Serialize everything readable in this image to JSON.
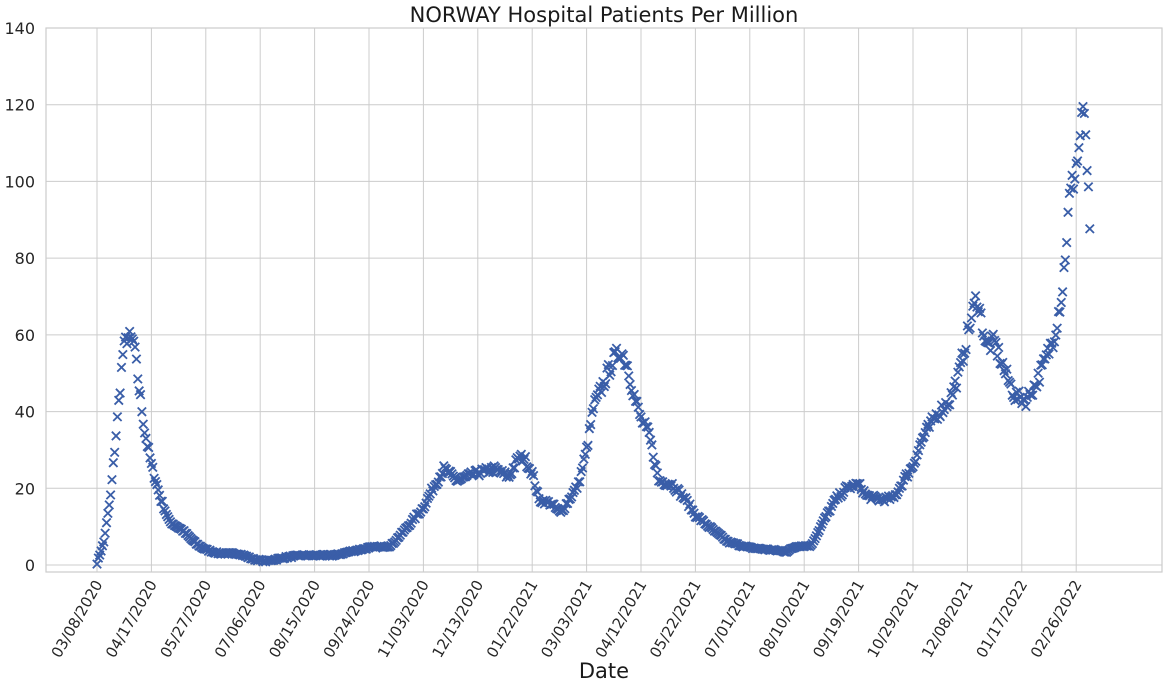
{
  "chart_data": {
    "type": "scatter",
    "title": "NORWAY   Hospital Patients Per Million",
    "xlabel": "Date",
    "ylabel": "",
    "ylim": [
      0,
      140
    ],
    "yticks": [
      0,
      20,
      40,
      60,
      80,
      100,
      120,
      140
    ],
    "x_start": "03/08/2020",
    "x_end": "03/08/2022",
    "xticks": [
      "03/08/2020",
      "04/17/2020",
      "05/27/2020",
      "07/06/2020",
      "08/15/2020",
      "09/24/2020",
      "11/03/2020",
      "12/13/2020",
      "01/22/2021",
      "03/03/2021",
      "04/12/2021",
      "05/22/2021",
      "07/01/2021",
      "08/10/2021",
      "09/19/2021",
      "10/29/2021",
      "12/08/2021",
      "01/17/2022",
      "02/26/2022"
    ],
    "marker": "x",
    "grid": true,
    "color": "#3a5ea8",
    "series": [
      {
        "keyframes": [
          [
            "03/08/2020",
            0.5
          ],
          [
            "03/13/2020",
            6
          ],
          [
            "03/18/2020",
            18
          ],
          [
            "03/23/2020",
            38
          ],
          [
            "03/27/2020",
            55
          ],
          [
            "03/30/2020",
            59.5
          ],
          [
            "04/04/2020",
            58
          ],
          [
            "04/08/2020",
            46
          ],
          [
            "04/12/2020",
            35
          ],
          [
            "04/17/2020",
            26
          ],
          [
            "04/24/2020",
            17
          ],
          [
            "04/30/2020",
            11.5
          ],
          [
            "05/10/2020",
            9
          ],
          [
            "05/20/2020",
            5.5
          ],
          [
            "05/27/2020",
            4
          ],
          [
            "06/06/2020",
            3
          ],
          [
            "06/20/2020",
            3
          ],
          [
            "07/01/2020",
            1.5
          ],
          [
            "07/10/2020",
            1
          ],
          [
            "07/25/2020",
            2
          ],
          [
            "08/05/2020",
            2.5
          ],
          [
            "08/15/2020",
            2.5
          ],
          [
            "08/30/2020",
            2.5
          ],
          [
            "09/10/2020",
            3.5
          ],
          [
            "09/24/2020",
            4.5
          ],
          [
            "10/10/2020",
            5
          ],
          [
            "10/20/2020",
            9
          ],
          [
            "11/03/2020",
            15
          ],
          [
            "11/10/2020",
            20
          ],
          [
            "11/18/2020",
            25
          ],
          [
            "11/28/2020",
            22
          ],
          [
            "12/13/2020",
            24
          ],
          [
            "12/25/2020",
            25
          ],
          [
            "01/05/2021",
            23
          ],
          [
            "01/12/2021",
            28
          ],
          [
            "01/16/2021",
            28
          ],
          [
            "01/22/2021",
            24
          ],
          [
            "01/27/2021",
            17
          ],
          [
            "02/05/2021",
            16
          ],
          [
            "02/12/2021",
            13.5
          ],
          [
            "02/18/2021",
            17
          ],
          [
            "02/25/2021",
            21
          ],
          [
            "03/03/2021",
            30
          ],
          [
            "03/08/2021",
            41
          ],
          [
            "03/15/2021",
            47
          ],
          [
            "03/22/2021",
            53
          ],
          [
            "03/28/2021",
            56
          ],
          [
            "04/02/2021",
            52
          ],
          [
            "04/07/2021",
            44
          ],
          [
            "04/12/2021",
            38
          ],
          [
            "04/18/2021",
            34
          ],
          [
            "04/25/2021",
            22
          ],
          [
            "05/05/2021",
            21
          ],
          [
            "05/15/2021",
            17
          ],
          [
            "05/22/2021",
            13
          ],
          [
            "06/01/2021",
            10
          ],
          [
            "06/15/2021",
            6
          ],
          [
            "07/01/2021",
            4.5
          ],
          [
            "07/15/2021",
            4
          ],
          [
            "07/28/2021",
            3.5
          ],
          [
            "08/05/2021",
            5
          ],
          [
            "08/15/2021",
            5
          ],
          [
            "08/25/2021",
            12
          ],
          [
            "09/02/2021",
            17
          ],
          [
            "09/10/2021",
            20
          ],
          [
            "09/19/2021",
            21
          ],
          [
            "09/25/2021",
            18
          ],
          [
            "10/05/2021",
            17
          ],
          [
            "10/15/2021",
            17.5
          ],
          [
            "10/22/2021",
            22
          ],
          [
            "10/29/2021",
            26
          ],
          [
            "11/05/2021",
            33
          ],
          [
            "11/15/2021",
            39
          ],
          [
            "11/25/2021",
            43
          ],
          [
            "12/02/2021",
            50
          ],
          [
            "12/08/2021",
            60
          ],
          [
            "12/15/2021",
            70
          ],
          [
            "12/22/2021",
            57
          ],
          [
            "12/28/2021",
            58
          ],
          [
            "01/05/2022",
            50
          ],
          [
            "01/12/2022",
            44
          ],
          [
            "01/20/2022",
            43
          ],
          [
            "01/27/2022",
            47
          ],
          [
            "02/03/2022",
            53
          ],
          [
            "02/10/2022",
            60
          ],
          [
            "02/16/2022",
            72
          ],
          [
            "02/21/2022",
            95
          ],
          [
            "02/28/2022",
            108
          ],
          [
            "03/02/2022",
            117.5
          ],
          [
            "03/05/2022",
            113
          ],
          [
            "03/08/2022",
            86
          ]
        ]
      }
    ]
  }
}
